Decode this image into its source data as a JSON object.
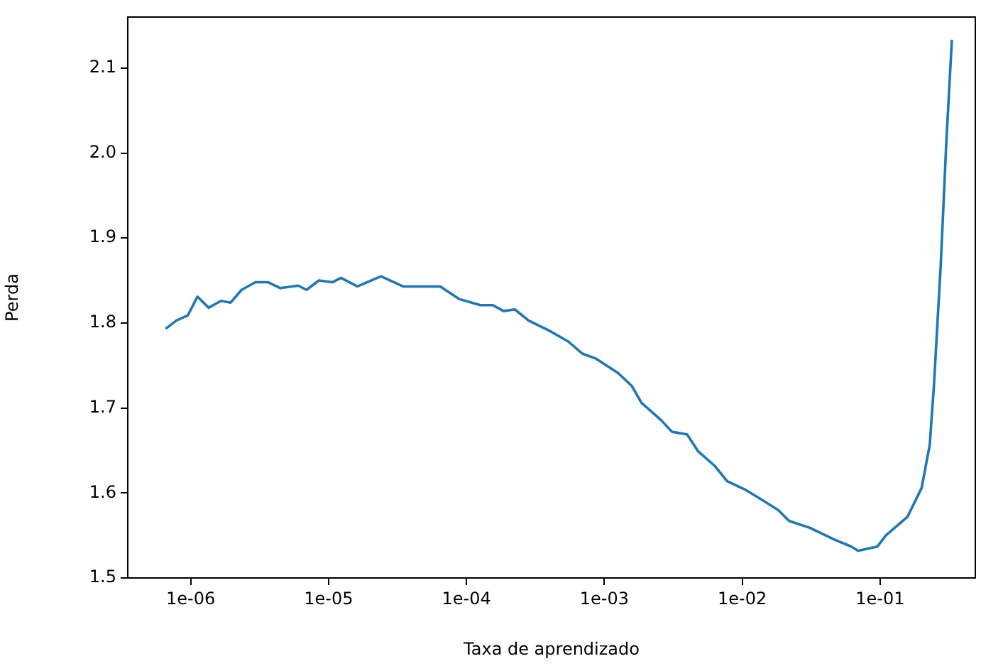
{
  "chart_data": {
    "type": "line",
    "xlabel": "Taxa de aprendizado",
    "ylabel": "Perda",
    "log": "x",
    "grid": false,
    "legend": false,
    "marker": "none",
    "line_style": "solid",
    "xlim": [
      3.5e-07,
      0.49
    ],
    "ylim": [
      1.5,
      2.16
    ],
    "xticks": [
      {
        "value": 1e-06,
        "label": "1e-06"
      },
      {
        "value": 1e-05,
        "label": "1e-05"
      },
      {
        "value": 0.0001,
        "label": "1e-04"
      },
      {
        "value": 0.001,
        "label": "1e-03"
      },
      {
        "value": 0.01,
        "label": "1e-02"
      },
      {
        "value": 0.1,
        "label": "1e-01"
      }
    ],
    "yticks": [
      1.5,
      1.6,
      1.7,
      1.8,
      1.9,
      {
        "value": 2,
        "label": "2.0"
      },
      2.1
    ],
    "x": [
      6.68e-07,
      7.89e-07,
      9.55e-07,
      1.12e-06,
      1.35e-06,
      1.66e-06,
      1.95e-06,
      2.34e-06,
      2.95e-06,
      3.63e-06,
      4.47e-06,
      6.03e-06,
      6.92e-06,
      8.51e-06,
      1.07e-05,
      1.23e-05,
      1.62e-05,
      2.4e-05,
      3.47e-05,
      5.13e-05,
      6.46e-05,
      8.91e-05,
      0.000126,
      0.000155,
      0.000186,
      0.000224,
      0.000282,
      0.000398,
      0.00055,
      0.000692,
      0.000871,
      0.00126,
      0.00158,
      0.00186,
      0.00257,
      0.00309,
      0.00398,
      0.00479,
      0.00631,
      0.00776,
      0.0105,
      0.0145,
      0.0182,
      0.0219,
      0.0309,
      0.0468,
      0.0617,
      0.0692,
      0.0955,
      0.11,
      0.158,
      0.2,
      0.229,
      0.245,
      0.275,
      0.302,
      0.331
    ],
    "series": [
      {
        "color": "#1f77b4",
        "values": [
          1.794,
          1.803,
          1.809,
          1.831,
          1.818,
          1.826,
          1.824,
          1.839,
          1.848,
          1.848,
          1.841,
          1.844,
          1.839,
          1.85,
          1.848,
          1.853,
          1.843,
          1.855,
          1.843,
          1.843,
          1.843,
          1.828,
          1.821,
          1.821,
          1.814,
          1.816,
          1.803,
          1.791,
          1.778,
          1.764,
          1.758,
          1.741,
          1.726,
          1.706,
          1.686,
          1.672,
          1.669,
          1.649,
          1.632,
          1.614,
          1.604,
          1.59,
          1.58,
          1.567,
          1.559,
          1.545,
          1.537,
          1.532,
          1.537,
          1.55,
          1.572,
          1.606,
          1.657,
          1.724,
          1.868,
          2.013,
          2.132
        ]
      }
    ]
  }
}
